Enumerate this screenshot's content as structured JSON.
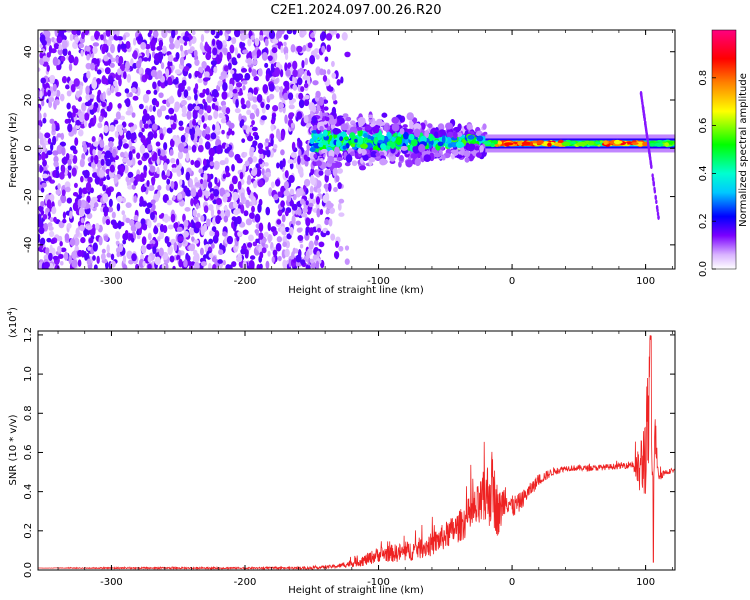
{
  "title": "C2E1.2024.097.00.26.R20",
  "chart_data": [
    {
      "type": "heatmap",
      "xlabel": "Height of straight line (km)",
      "ylabel": "Frequency (Hz)",
      "xlim": [
        -355,
        122
      ],
      "ylim": [
        -50,
        49
      ],
      "xticks": [
        -300,
        -200,
        -100,
        0,
        100
      ],
      "yticks": [
        -40,
        -20,
        0,
        20,
        40
      ],
      "colorbar": {
        "label": "Normalized spectral amplitude",
        "range": [
          0.0,
          1.0
        ],
        "ticks": [
          0.0,
          0.2,
          0.4,
          0.6,
          0.8
        ],
        "colormap": [
          "#ffffff",
          "#6a00ff",
          "#0000ff",
          "#00e5ff",
          "#00ff00",
          "#ffff00",
          "#ff8000",
          "#ff0000",
          "#ff0080"
        ]
      },
      "features": [
        {
          "x_range": [
            -355,
            -130
          ],
          "description_values": "scattered low-amplitude noise across all frequencies",
          "amplitude": 0.1
        },
        {
          "x_range": [
            -150,
            -20
          ],
          "freq_center": 3,
          "freq_spread": 12,
          "amplitude": 0.45
        },
        {
          "x_range": [
            -20,
            122
          ],
          "freq_center": 2,
          "freq_spread": 3,
          "amplitude": 0.85
        },
        {
          "x_range": [
            96,
            110
          ],
          "freq_range": [
            -30,
            25
          ],
          "amplitude": 0.1
        }
      ]
    },
    {
      "type": "line",
      "xlabel": "Height of straight line (km)",
      "ylabel": "SNR (10 * v/v)",
      "y_multiplier": "(x10",
      "y_multiplier_exp": "4",
      "xlim": [
        -355,
        122
      ],
      "ylim": [
        0,
        1.22
      ],
      "xticks": [
        -300,
        -200,
        -100,
        0,
        100
      ],
      "yticks": [
        0.0,
        0.2,
        0.4,
        0.6,
        0.8,
        1.0,
        1.2
      ],
      "series": [
        {
          "color": "#ee2222",
          "x": [
            -355,
            -300,
            -250,
            -200,
            -150,
            -130,
            -110,
            -100,
            -80,
            -60,
            -40,
            -25,
            -15,
            -10,
            -5,
            0,
            5,
            10,
            20,
            30,
            40,
            60,
            80,
            90,
            95,
            98,
            100,
            103,
            105,
            107,
            110,
            115,
            122
          ],
          "y": [
            0.01,
            0.01,
            0.01,
            0.01,
            0.01,
            0.02,
            0.05,
            0.08,
            0.09,
            0.13,
            0.22,
            0.32,
            0.42,
            0.28,
            0.38,
            0.32,
            0.34,
            0.38,
            0.46,
            0.5,
            0.52,
            0.52,
            0.53,
            0.54,
            0.5,
            0.56,
            0.62,
            0.8,
            0.5,
            0.7,
            0.48,
            0.5,
            0.51
          ],
          "noise": [
            0,
            0.004,
            0.004,
            0.004,
            0.006,
            0.01,
            0.03,
            0.04,
            0.05,
            0.06,
            0.08,
            0.12,
            0.2,
            0.12,
            0.08,
            0.06,
            0.05,
            0.04,
            0.03,
            0.02,
            0.015,
            0.015,
            0.015,
            0.02,
            0.12,
            0.2,
            0.25,
            0.35,
            0.2,
            0.12,
            0.03,
            0.015,
            0.01
          ]
        }
      ]
    }
  ]
}
